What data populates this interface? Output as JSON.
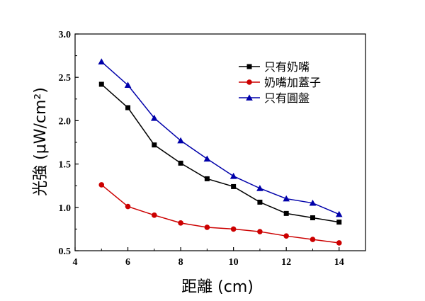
{
  "chart_data": {
    "type": "line",
    "title": "",
    "xlabel": "距離 (cm)",
    "ylabel": "光強 (μW/cm²)",
    "xlim": [
      4,
      15
    ],
    "ylim": [
      0.5,
      3.0
    ],
    "x_ticks": [
      4,
      6,
      8,
      10,
      12,
      14
    ],
    "y_ticks": [
      0.5,
      1.0,
      1.5,
      2.0,
      2.5,
      3.0
    ],
    "x_tick_labels": [
      "4",
      "6",
      "8",
      "10",
      "12",
      "14"
    ],
    "y_tick_labels": [
      "0.5",
      "1.0",
      "1.5",
      "2.0",
      "2.5",
      "3.0"
    ],
    "legend_position": "top-right",
    "grid": false,
    "x": [
      5,
      6,
      7,
      8,
      9,
      10,
      11,
      12,
      13,
      14
    ],
    "series": [
      {
        "name": "只有奶嘴",
        "color": "#000000",
        "marker": "square",
        "values": [
          2.42,
          2.15,
          1.72,
          1.51,
          1.33,
          1.24,
          1.06,
          0.93,
          0.88,
          0.83
        ]
      },
      {
        "name": "奶嘴加蓋子",
        "color": "#cc0000",
        "marker": "circle",
        "values": [
          1.26,
          1.01,
          0.91,
          0.82,
          0.77,
          0.75,
          0.72,
          0.67,
          0.63,
          0.59
        ]
      },
      {
        "name": "只有圓盤",
        "color": "#0000aa",
        "marker": "triangle",
        "values": [
          2.68,
          2.41,
          2.03,
          1.77,
          1.56,
          1.36,
          1.22,
          1.1,
          1.05,
          0.92
        ]
      }
    ]
  }
}
